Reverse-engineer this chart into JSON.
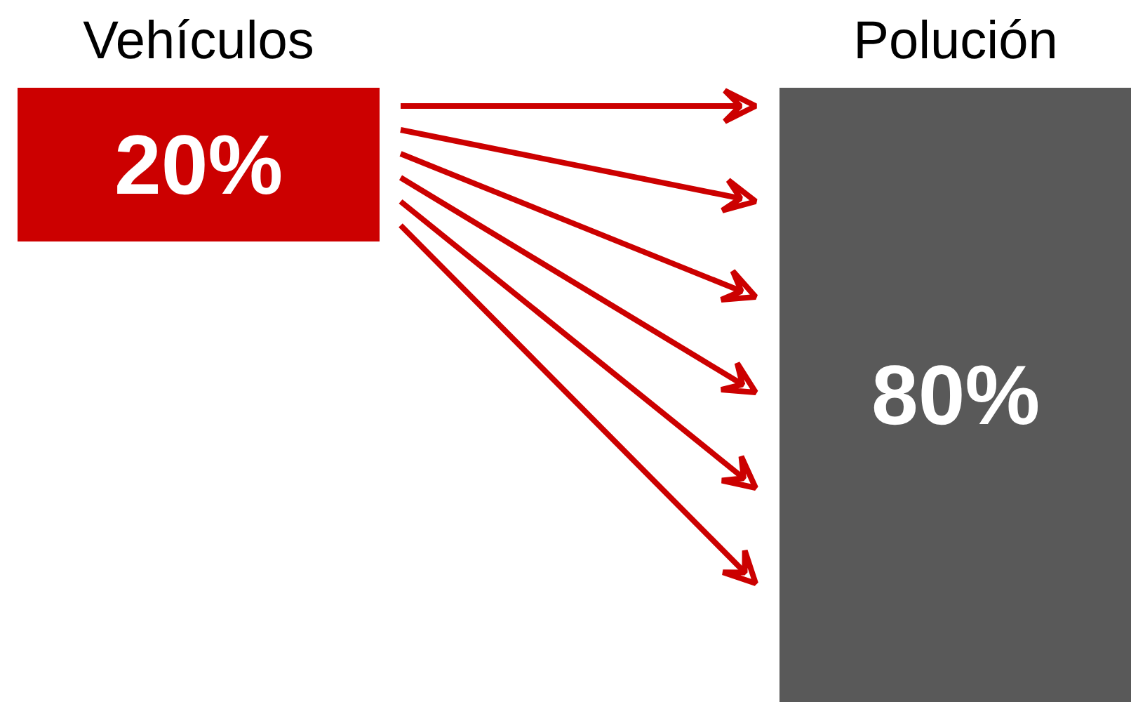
{
  "chart_data": {
    "type": "other",
    "categories": [
      "Vehículos",
      "Polución"
    ],
    "values": [
      20,
      80
    ],
    "value_labels": [
      "20%",
      "80%"
    ],
    "colors": [
      "#cc0000",
      "#595959"
    ]
  }
}
